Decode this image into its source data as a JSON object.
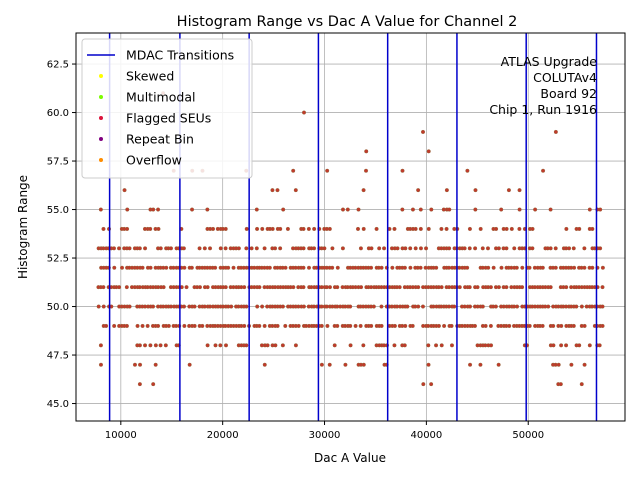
{
  "chart_data": {
    "type": "scatter",
    "title": "Histogram Range vs Dac A Value for Channel 2",
    "xlabel": "Dac A Value",
    "ylabel": "Histogram Range",
    "xlim": [
      5600,
      59500
    ],
    "ylim": [
      44.1,
      64.1
    ],
    "x_ticks": [
      10000,
      20000,
      30000,
      40000,
      50000
    ],
    "x_tick_labels": [
      "10000",
      "20000",
      "30000",
      "40000",
      "50000"
    ],
    "y_ticks": [
      45.0,
      47.5,
      50.0,
      52.5,
      55.0,
      57.5,
      60.0,
      62.5
    ],
    "y_tick_labels": [
      "45.0",
      "47.5",
      "50.0",
      "52.5",
      "55.0",
      "57.5",
      "60.0",
      "62.5"
    ],
    "grid": true,
    "legend_position": "top-left",
    "legend": [
      {
        "label": "MDAC Transitions",
        "marker": "line",
        "color": "#0000cc"
      },
      {
        "label": "Skewed",
        "marker": "dot",
        "color": "#ffff00"
      },
      {
        "label": "Multimodal",
        "marker": "dot",
        "color": "#7cfc00"
      },
      {
        "label": "Flagged SEUs",
        "marker": "dot",
        "color": "#dc143c"
      },
      {
        "label": "Repeat Bin",
        "marker": "dot",
        "color": "#800080"
      },
      {
        "label": "Overflow",
        "marker": "dot",
        "color": "#ff8c00"
      }
    ],
    "annotation": [
      "ATLAS Upgrade",
      "COLUTAv4",
      "Board 92",
      "Chip 1, Run 1916"
    ],
    "mdac_transitions": [
      8900,
      15800,
      22600,
      29400,
      36200,
      43000,
      49800,
      56700
    ],
    "x_range": [
      7800,
      57300
    ],
    "point_color": "#c0392b",
    "point_edge_color": "#8b6b3a",
    "row_density": [
      {
        "y": 45,
        "density": 0.01
      },
      {
        "y": 46,
        "density": 0.03
      },
      {
        "y": 47,
        "density": 0.09
      },
      {
        "y": 48,
        "density": 0.28
      },
      {
        "y": 49,
        "density": 0.62
      },
      {
        "y": 50,
        "density": 0.82
      },
      {
        "y": 51,
        "density": 0.82
      },
      {
        "y": 52,
        "density": 0.7
      },
      {
        "y": 53,
        "density": 0.5
      },
      {
        "y": 54,
        "density": 0.3
      },
      {
        "y": 55,
        "density": 0.17
      },
      {
        "y": 56,
        "density": 0.07
      },
      {
        "y": 57,
        "density": 0.04
      },
      {
        "y": 58,
        "density": 0.015
      },
      {
        "y": 59,
        "density": 0.008
      },
      {
        "y": 60,
        "density": 0.004
      },
      {
        "y": 61,
        "density": 0.002
      },
      {
        "y": 63,
        "density": 0.0008
      }
    ]
  }
}
